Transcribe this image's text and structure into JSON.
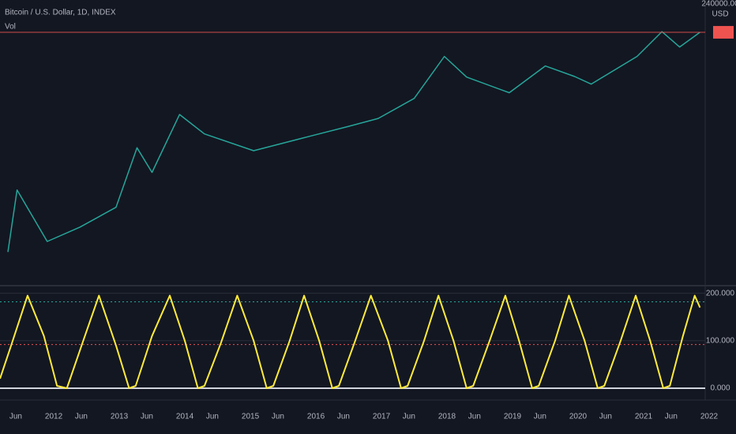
{
  "chart_data": [
    {
      "type": "line",
      "title": "Bitcoin / U.S. Dollar, 1D, INDEX",
      "subtitle": "Vol",
      "currency": "USD",
      "log": true,
      "x": [
        2011.3,
        2011.44,
        2011.9,
        2012.4,
        2012.95,
        2013.27,
        2013.5,
        2013.92,
        2014.3,
        2015.05,
        2015.9,
        2016.5,
        2016.95,
        2017.5,
        2017.96,
        2018.3,
        2018.95,
        2019.5,
        2019.95,
        2020.2,
        2020.9,
        2021.28,
        2021.55,
        2021.86
      ],
      "series": [
        {
          "color": "#26a69a",
          "values": [
            1.5,
            30,
            2.5,
            5,
            13,
            230,
            70,
            1150,
            450,
            200,
            400,
            650,
            950,
            2500,
            19000,
            7000,
            3300,
            12000,
            7200,
            5000,
            19000,
            63000,
            30000,
            61000
          ]
        }
      ],
      "xlim": [
        2011.18,
        2021.94
      ],
      "ylim": [
        1,
        240000
      ],
      "yticks": [
        {
          "value": 240000,
          "label": "240000.00"
        }
      ]
    },
    {
      "type": "line",
      "x": [
        2011.18,
        2011.35,
        2011.6,
        2011.85,
        2012.05,
        2012.2,
        2012.45,
        2012.69,
        2012.95,
        2013.15,
        2013.25,
        2013.5,
        2013.77,
        2014.0,
        2014.2,
        2014.3,
        2014.55,
        2014.8,
        2015.05,
        2015.25,
        2015.35,
        2015.6,
        2015.82,
        2016.05,
        2016.25,
        2016.35,
        2016.6,
        2016.84,
        2017.1,
        2017.3,
        2017.4,
        2017.65,
        2017.87,
        2018.1,
        2018.3,
        2018.4,
        2018.65,
        2018.89,
        2019.1,
        2019.3,
        2019.4,
        2019.65,
        2019.86,
        2020.1,
        2020.3,
        2020.4,
        2020.65,
        2020.88,
        2021.1,
        2021.3,
        2021.4,
        2021.6,
        2021.78,
        2021.86
      ],
      "series": [
        {
          "color": "#ffeb3b",
          "values": [
            20,
            90,
            195,
            110,
            5,
            0,
            100,
            195,
            90,
            0,
            5,
            110,
            195,
            100,
            0,
            5,
            95,
            195,
            100,
            0,
            5,
            100,
            195,
            100,
            0,
            5,
            100,
            195,
            100,
            0,
            5,
            100,
            195,
            100,
            0,
            5,
            100,
            195,
            100,
            0,
            5,
            100,
            195,
            100,
            0,
            5,
            100,
            195,
            100,
            0,
            5,
            110,
            195,
            170
          ]
        }
      ],
      "hlines": [
        {
          "value": 182,
          "color": "#26a69a"
        },
        {
          "value": 92,
          "color": "#ef5350"
        }
      ],
      "xlim": [
        2011.18,
        2021.94
      ],
      "ylim": [
        -25,
        216
      ],
      "yticks": [
        {
          "value": 0,
          "label": "0.000"
        },
        {
          "value": 100,
          "label": "100.000"
        },
        {
          "value": 200,
          "label": "200.000"
        }
      ],
      "xticks": [
        {
          "value": 2011.42,
          "label": "Jun"
        },
        {
          "value": 2012,
          "label": "2012"
        },
        {
          "value": 2012.42,
          "label": "Jun"
        },
        {
          "value": 2013,
          "label": "2013"
        },
        {
          "value": 2013.42,
          "label": "Jun"
        },
        {
          "value": 2014,
          "label": "2014"
        },
        {
          "value": 2014.42,
          "label": "Jun"
        },
        {
          "value": 2015,
          "label": "2015"
        },
        {
          "value": 2015.42,
          "label": "Jun"
        },
        {
          "value": 2016,
          "label": "2016"
        },
        {
          "value": 2016.42,
          "label": "Jun"
        },
        {
          "value": 2017,
          "label": "2017"
        },
        {
          "value": 2017.42,
          "label": "Jun"
        },
        {
          "value": 2018,
          "label": "2018"
        },
        {
          "value": 2018.42,
          "label": "Jun"
        },
        {
          "value": 2019,
          "label": "2019"
        },
        {
          "value": 2019.42,
          "label": "Jun"
        },
        {
          "value": 2020,
          "label": "2020"
        },
        {
          "value": 2020.42,
          "label": "Jun"
        },
        {
          "value": 2021,
          "label": "2021"
        },
        {
          "value": 2021.42,
          "label": "Jun"
        },
        {
          "value": 2022,
          "label": "2022"
        }
      ]
    }
  ]
}
